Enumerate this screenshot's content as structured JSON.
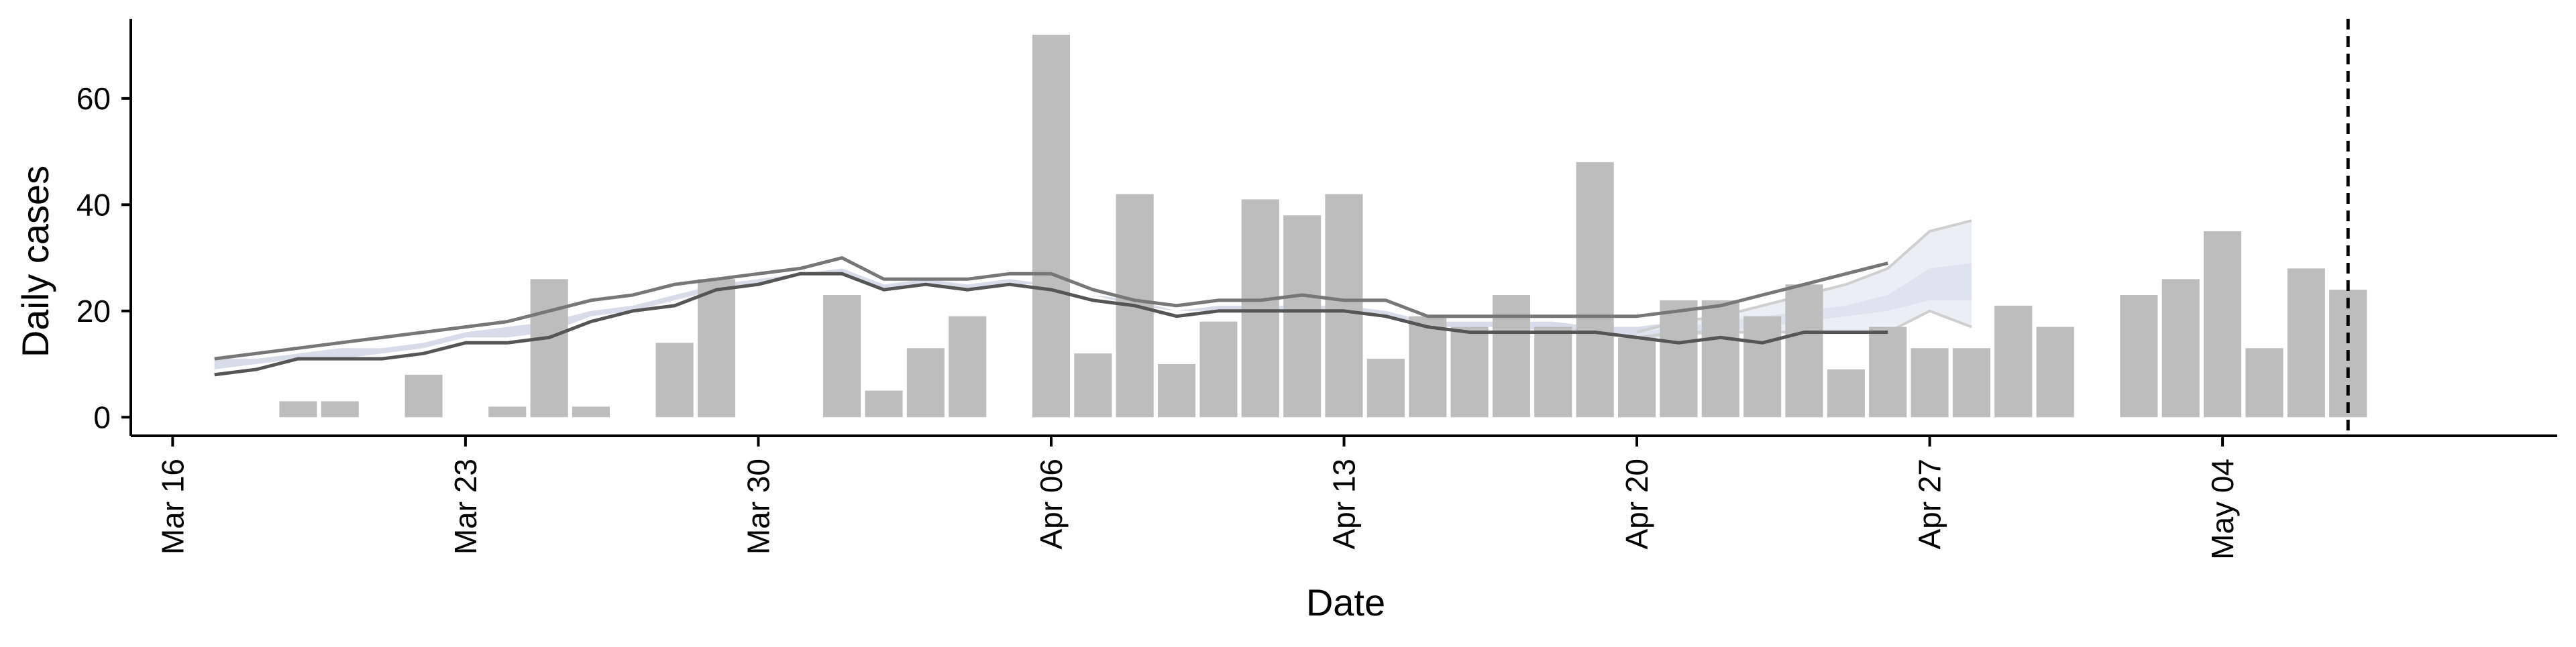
{
  "chart_data": {
    "type": "bar",
    "xlabel": "Date",
    "ylabel": "Daily cases",
    "ylim": [
      -3.5,
      75
    ],
    "y_ticks": [
      0,
      20,
      40,
      60
    ],
    "x_tick_labels": [
      "Mar 16",
      "Mar 23",
      "Mar 30",
      "Apr 06",
      "Apr 13",
      "Apr 20",
      "Apr 27",
      "May 04"
    ],
    "x_tick_dates": [
      "2020-03-16",
      "2020-03-23",
      "2020-03-30",
      "2020-04-06",
      "2020-04-13",
      "2020-04-20",
      "2020-04-27",
      "2020-05-04"
    ],
    "xlim": [
      "2020-03-15",
      "2020-05-12"
    ],
    "grid": false,
    "bars": {
      "name": "Daily cases",
      "color": "#bdbdbd",
      "dates": [
        "2020-03-19",
        "2020-03-20",
        "2020-03-22",
        "2020-03-24",
        "2020-03-25",
        "2020-03-26",
        "2020-03-28",
        "2020-03-29",
        "2020-04-01",
        "2020-04-02",
        "2020-04-03",
        "2020-04-04",
        "2020-04-06",
        "2020-04-07",
        "2020-04-08",
        "2020-04-09",
        "2020-04-10",
        "2020-04-11",
        "2020-04-12",
        "2020-04-13",
        "2020-04-14",
        "2020-04-15",
        "2020-04-16",
        "2020-04-17",
        "2020-04-18",
        "2020-04-19",
        "2020-04-20",
        "2020-04-21",
        "2020-04-22",
        "2020-04-23",
        "2020-04-24",
        "2020-04-25",
        "2020-04-26",
        "2020-04-27",
        "2020-04-28",
        "2020-04-29",
        "2020-04-30",
        "2020-05-02",
        "2020-05-03",
        "2020-05-04",
        "2020-05-05",
        "2020-05-06",
        "2020-05-07"
      ],
      "values": [
        3,
        3,
        8,
        2,
        26,
        2,
        14,
        26,
        23,
        5,
        13,
        19,
        72,
        12,
        42,
        10,
        18,
        41,
        38,
        42,
        11,
        19,
        17,
        23,
        17,
        48,
        15,
        22,
        22,
        19,
        25,
        9,
        17,
        13,
        13,
        21,
        17,
        23,
        26,
        35,
        13,
        28,
        24
      ]
    },
    "lines": [
      {
        "color": "#555555",
        "dates": [
          "2020-03-17",
          "2020-03-18",
          "2020-03-19",
          "2020-03-20",
          "2020-03-21",
          "2020-03-22",
          "2020-03-23",
          "2020-03-24",
          "2020-03-25",
          "2020-03-26",
          "2020-03-27",
          "2020-03-28",
          "2020-03-29",
          "2020-03-30",
          "2020-03-31",
          "2020-04-01",
          "2020-04-02",
          "2020-04-03",
          "2020-04-04",
          "2020-04-05",
          "2020-04-06",
          "2020-04-07",
          "2020-04-08",
          "2020-04-09",
          "2020-04-10",
          "2020-04-11",
          "2020-04-12",
          "2020-04-13",
          "2020-04-14",
          "2020-04-15",
          "2020-04-16",
          "2020-04-17",
          "2020-04-18",
          "2020-04-19",
          "2020-04-20",
          "2020-04-21",
          "2020-04-22",
          "2020-04-23",
          "2020-04-24",
          "2020-04-25",
          "2020-04-26"
        ],
        "values": [
          8,
          9,
          11,
          11,
          11,
          12,
          14,
          14,
          15,
          18,
          20,
          21,
          24,
          25,
          27,
          27,
          24,
          25,
          24,
          25,
          24,
          22,
          21,
          19,
          20,
          20,
          20,
          20,
          19,
          17,
          16,
          16,
          16,
          16,
          15,
          14,
          15,
          14,
          16,
          16,
          16
        ]
      },
      {
        "color": "#777777",
        "dates": [
          "2020-03-17",
          "2020-03-18",
          "2020-03-19",
          "2020-03-20",
          "2020-03-21",
          "2020-03-22",
          "2020-03-23",
          "2020-03-24",
          "2020-03-25",
          "2020-03-26",
          "2020-03-27",
          "2020-03-28",
          "2020-03-29",
          "2020-03-30",
          "2020-03-31",
          "2020-04-01",
          "2020-04-02",
          "2020-04-03",
          "2020-04-04",
          "2020-04-05",
          "2020-04-06",
          "2020-04-07",
          "2020-04-08",
          "2020-04-09",
          "2020-04-10",
          "2020-04-11",
          "2020-04-12",
          "2020-04-13",
          "2020-04-14",
          "2020-04-15",
          "2020-04-16",
          "2020-04-17",
          "2020-04-18",
          "2020-04-19",
          "2020-04-20",
          "2020-04-21",
          "2020-04-22",
          "2020-04-23",
          "2020-04-24",
          "2020-04-25",
          "2020-04-26"
        ],
        "values": [
          11,
          12,
          13,
          14,
          15,
          16,
          17,
          18,
          20,
          22,
          23,
          25,
          26,
          27,
          28,
          30,
          26,
          26,
          26,
          27,
          27,
          24,
          22,
          21,
          22,
          22,
          23,
          22,
          22,
          19,
          19,
          19,
          19,
          19,
          19,
          20,
          21,
          23,
          25,
          27,
          29
        ]
      }
    ],
    "ribbons": [
      {
        "color": "#d8dce8",
        "dates": [
          "2020-03-17",
          "2020-03-18",
          "2020-03-19",
          "2020-03-20",
          "2020-03-21",
          "2020-03-22",
          "2020-03-23",
          "2020-03-24",
          "2020-03-25",
          "2020-03-26",
          "2020-03-27",
          "2020-03-28",
          "2020-03-29",
          "2020-03-30",
          "2020-03-31",
          "2020-04-01",
          "2020-04-02",
          "2020-04-03",
          "2020-04-04",
          "2020-04-05",
          "2020-04-06",
          "2020-04-07",
          "2020-04-08",
          "2020-04-09",
          "2020-04-10",
          "2020-04-11",
          "2020-04-12",
          "2020-04-13",
          "2020-04-14",
          "2020-04-15",
          "2020-04-16",
          "2020-04-17",
          "2020-04-18",
          "2020-04-19",
          "2020-04-20",
          "2020-04-21",
          "2020-04-22",
          "2020-04-23",
          "2020-04-24",
          "2020-04-25",
          "2020-04-26"
        ],
        "lower": [
          9,
          10,
          11,
          11,
          12,
          13,
          15,
          15,
          16,
          19,
          20,
          22,
          24,
          25,
          27,
          27,
          24,
          25,
          24,
          25,
          25,
          23,
          21,
          20,
          20,
          20,
          20,
          20,
          19,
          17,
          17,
          17,
          16,
          16,
          15,
          15,
          16,
          16,
          17,
          18,
          18
        ],
        "upper": [
          11,
          11,
          12,
          13,
          13,
          14,
          16,
          17,
          18,
          20,
          21,
          23,
          25,
          26,
          27,
          28,
          25,
          26,
          25,
          26,
          25,
          23,
          22,
          20,
          21,
          21,
          21,
          21,
          20,
          18,
          18,
          18,
          18,
          17,
          17,
          18,
          19,
          20,
          21,
          22,
          23
        ]
      },
      {
        "color": "#eceef5",
        "dates": [
          "2020-04-20",
          "2020-04-21",
          "2020-04-22",
          "2020-04-23",
          "2020-04-24",
          "2020-04-25",
          "2020-04-26",
          "2020-04-27",
          "2020-04-28"
        ],
        "lower": [
          15,
          16,
          16,
          16,
          16,
          16,
          16,
          20,
          17
        ],
        "upper": [
          16,
          18,
          19,
          21,
          23,
          25,
          28,
          35,
          37
        ]
      },
      {
        "color": "#dfe3ee",
        "dates": [
          "2020-04-20",
          "2020-04-21",
          "2020-04-22",
          "2020-04-23",
          "2020-04-24",
          "2020-04-25",
          "2020-04-26",
          "2020-04-27",
          "2020-04-28"
        ],
        "lower": [
          15,
          16,
          16,
          17,
          18,
          19,
          20,
          22,
          22
        ],
        "upper": [
          16,
          17,
          18,
          19,
          20,
          21,
          23,
          28,
          29
        ]
      }
    ],
    "ribbon_edges": {
      "color": "#cfcfcf",
      "dates": [
        "2020-04-20",
        "2020-04-21",
        "2020-04-22",
        "2020-04-23",
        "2020-04-24",
        "2020-04-25",
        "2020-04-26",
        "2020-04-27",
        "2020-04-28"
      ],
      "lower": [
        15,
        16,
        16,
        16,
        16,
        16,
        16,
        20,
        17
      ],
      "upper": [
        16,
        18,
        19,
        21,
        23,
        25,
        28,
        35,
        37
      ]
    },
    "vline": {
      "date": "2020-05-07",
      "style": "dashed",
      "color": "#000000"
    }
  }
}
